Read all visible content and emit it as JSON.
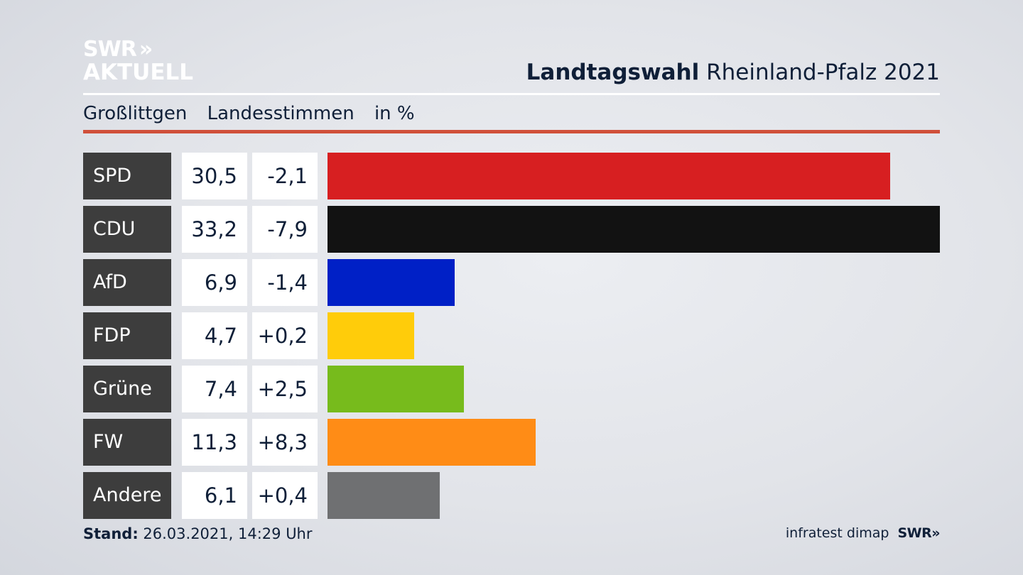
{
  "logo": {
    "line1": "SWR",
    "chevrons": "»",
    "line2": "AKTUELL"
  },
  "header": {
    "title_bold": "Landtagswahl",
    "title_rest": "Rheinland-Pfalz 2021"
  },
  "subheader": {
    "place": "Großlittgen",
    "measure": "Landesstimmen",
    "unit": "in %"
  },
  "footer": {
    "stand_label": "Stand:",
    "stand_value": "26.03.2021, 14:29 Uhr",
    "source": "infratest dimap",
    "brand": "SWR",
    "brand_chevrons": "»"
  },
  "colors": {
    "accent_rule": "#d0503a"
  },
  "chart_data": {
    "type": "bar",
    "orientation": "horizontal",
    "categories": [
      "SPD",
      "CDU",
      "AfD",
      "FDP",
      "Grüne",
      "FW",
      "Andere"
    ],
    "values": [
      30.5,
      33.2,
      6.9,
      4.7,
      7.4,
      11.3,
      6.1
    ],
    "value_labels": [
      "30,5",
      "33,2",
      "6,9",
      "4,7",
      "7,4",
      "11,3",
      "6,1"
    ],
    "changes": [
      -2.1,
      -7.9,
      -1.4,
      0.2,
      2.5,
      8.3,
      0.4
    ],
    "change_labels": [
      "-2,1",
      "-7,9",
      "-1,4",
      "+0,2",
      "+2,5",
      "+8,3",
      "+0,4"
    ],
    "colors": [
      "#d71f21",
      "#121212",
      "#0020c6",
      "#ffcc0a",
      "#77bb1c",
      "#ff8c16",
      "#6f7072"
    ],
    "title": "Landtagswahl Rheinland-Pfalz 2021",
    "subtitle": "Großlittgen Landesstimmen in %",
    "grid": false
  }
}
